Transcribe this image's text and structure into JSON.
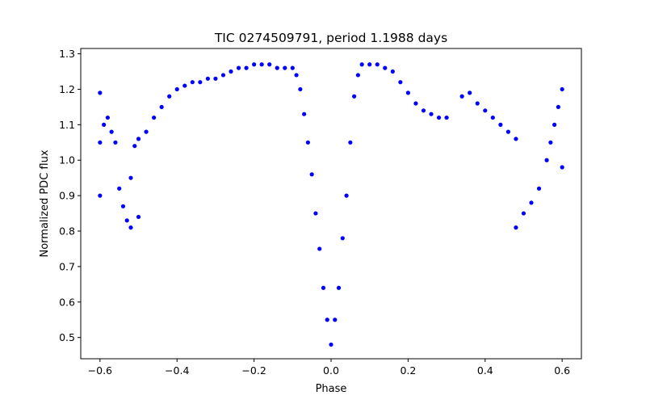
{
  "chart_data": {
    "type": "scatter",
    "title": "TIC 0274509791, period 1.1988 days",
    "xlabel": "Phase",
    "ylabel": "Normalized PDC flux",
    "xlim": [
      -0.65,
      0.65
    ],
    "ylim": [
      0.44,
      1.315
    ],
    "xticks": [
      -0.6,
      -0.4,
      -0.2,
      0.0,
      0.2,
      0.4,
      0.6
    ],
    "xtick_labels": [
      "−0.6",
      "−0.4",
      "−0.2",
      "0.0",
      "0.2",
      "0.4",
      "0.6"
    ],
    "yticks": [
      0.5,
      0.6,
      0.7,
      0.8,
      0.9,
      1.0,
      1.1,
      1.2,
      1.3
    ],
    "ytick_labels": [
      "0.5",
      "0.6",
      "0.7",
      "0.8",
      "0.9",
      "1.0",
      "1.1",
      "1.2",
      "1.3"
    ],
    "grid": false,
    "marker_color": "#0000ff",
    "series": [
      {
        "points": [
          [
            -0.6,
            1.19
          ],
          [
            -0.6,
            1.05
          ],
          [
            -0.6,
            0.9
          ],
          [
            -0.59,
            1.1
          ],
          [
            -0.58,
            1.12
          ],
          [
            -0.57,
            1.08
          ],
          [
            -0.56,
            1.05
          ],
          [
            -0.55,
            0.92
          ],
          [
            -0.54,
            0.87
          ],
          [
            -0.53,
            0.83
          ],
          [
            -0.52,
            0.81
          ],
          [
            -0.52,
            0.95
          ],
          [
            -0.51,
            1.04
          ],
          [
            -0.5,
            1.06
          ],
          [
            -0.5,
            0.84
          ],
          [
            -0.48,
            1.08
          ],
          [
            -0.46,
            1.12
          ],
          [
            -0.44,
            1.15
          ],
          [
            -0.42,
            1.18
          ],
          [
            -0.4,
            1.2
          ],
          [
            -0.38,
            1.21
          ],
          [
            -0.36,
            1.22
          ],
          [
            -0.34,
            1.22
          ],
          [
            -0.32,
            1.23
          ],
          [
            -0.3,
            1.23
          ],
          [
            -0.28,
            1.24
          ],
          [
            -0.26,
            1.25
          ],
          [
            -0.24,
            1.26
          ],
          [
            -0.22,
            1.26
          ],
          [
            -0.2,
            1.27
          ],
          [
            -0.18,
            1.27
          ],
          [
            -0.16,
            1.27
          ],
          [
            -0.14,
            1.26
          ],
          [
            -0.12,
            1.26
          ],
          [
            -0.1,
            1.26
          ],
          [
            -0.09,
            1.24
          ],
          [
            -0.08,
            1.2
          ],
          [
            -0.07,
            1.13
          ],
          [
            -0.06,
            1.05
          ],
          [
            -0.05,
            0.96
          ],
          [
            -0.04,
            0.85
          ],
          [
            -0.03,
            0.75
          ],
          [
            -0.02,
            0.64
          ],
          [
            -0.01,
            0.55
          ],
          [
            0.0,
            0.48
          ],
          [
            0.01,
            0.55
          ],
          [
            0.02,
            0.64
          ],
          [
            0.03,
            0.78
          ],
          [
            0.04,
            0.9
          ],
          [
            0.05,
            1.05
          ],
          [
            0.06,
            1.18
          ],
          [
            0.07,
            1.24
          ],
          [
            0.08,
            1.27
          ],
          [
            0.1,
            1.27
          ],
          [
            0.12,
            1.27
          ],
          [
            0.14,
            1.26
          ],
          [
            0.16,
            1.25
          ],
          [
            0.18,
            1.22
          ],
          [
            0.2,
            1.19
          ],
          [
            0.22,
            1.16
          ],
          [
            0.24,
            1.14
          ],
          [
            0.26,
            1.13
          ],
          [
            0.28,
            1.12
          ],
          [
            0.3,
            1.12
          ],
          [
            0.34,
            1.18
          ],
          [
            0.36,
            1.19
          ],
          [
            0.38,
            1.16
          ],
          [
            0.4,
            1.14
          ],
          [
            0.42,
            1.12
          ],
          [
            0.44,
            1.1
          ],
          [
            0.46,
            1.08
          ],
          [
            0.48,
            1.06
          ],
          [
            0.48,
            0.81
          ],
          [
            0.5,
            0.85
          ],
          [
            0.52,
            0.88
          ],
          [
            0.54,
            0.92
          ],
          [
            0.56,
            1.0
          ],
          [
            0.57,
            1.05
          ],
          [
            0.58,
            1.1
          ],
          [
            0.59,
            1.15
          ],
          [
            0.6,
            1.2
          ],
          [
            0.6,
            0.98
          ]
        ]
      }
    ]
  }
}
